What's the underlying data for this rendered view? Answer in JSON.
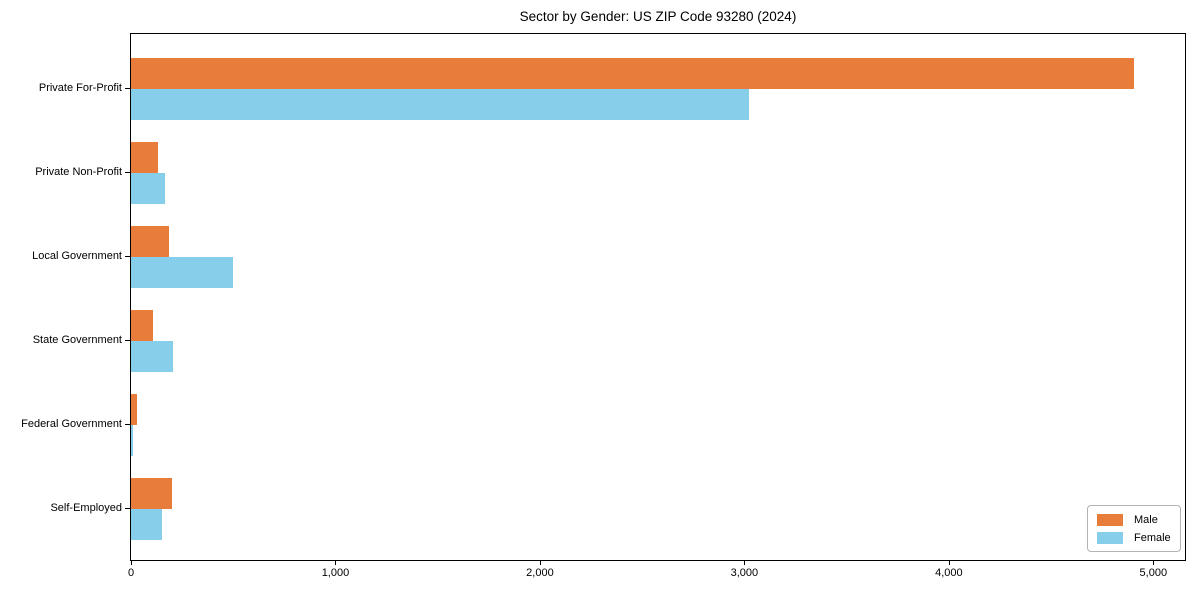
{
  "title": "Sector by Gender: US ZIP Code 93280 (2024)",
  "chart_data": {
    "type": "bar",
    "orientation": "horizontal",
    "title": "Sector by Gender: US ZIP Code 93280 (2024)",
    "categories": [
      "Private For-Profit",
      "Private Non-Profit",
      "Local Government",
      "State Government",
      "Federal Government",
      "Self-Employed"
    ],
    "series": [
      {
        "name": "Male",
        "color": "#e87d3b",
        "values": [
          4905,
          130,
          185,
          110,
          30,
          200
        ]
      },
      {
        "name": "Female",
        "color": "#87ceeb",
        "values": [
          3025,
          165,
          500,
          205,
          8,
          150
        ]
      }
    ],
    "xlabel": "",
    "ylabel": "",
    "xlim": [
      0,
      5155
    ],
    "x_ticks": [
      0,
      1000,
      2000,
      3000,
      4000,
      5000
    ],
    "x_tick_labels": [
      "0",
      "1,000",
      "2,000",
      "3,000",
      "4,000",
      "5,000"
    ],
    "grid": false,
    "legend": {
      "position": "lower right",
      "entries": [
        "Male",
        "Female"
      ]
    }
  }
}
